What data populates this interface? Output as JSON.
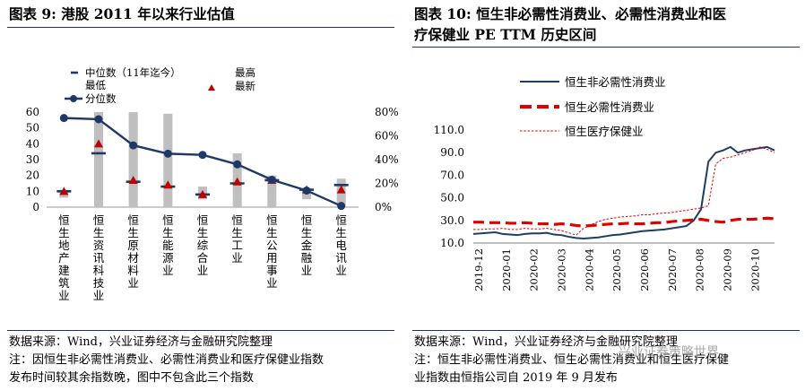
{
  "left": {
    "title": "图表 9:  港股 2011 年以来行业估值",
    "source_lines": [
      "数据来源：Wind，兴业证券经济与金融研究院整理",
      "注：因恒生非必需性消费业、必需性消费业和医疗保健业指数",
      "发布时间较其余指数晚，图中不包含此三个指数"
    ]
  },
  "right": {
    "title_lines": [
      "图表 10:  恒生非必需性消费业、必需性消费业和医",
      "疗保健业 PE TTM 历史区间"
    ],
    "source_lines": [
      "数据来源：Wind，兴业证券经济与金融研究院整理",
      "注：恒生非必需性消费业、恒生必需性消费业和恒生医疗保健",
      "业指数由恒指公司自 2019 年 9 月发布"
    ]
  },
  "watermark": "兴业证券策略世界",
  "chart_data": [
    {
      "type": "bar",
      "categories": [
        "恒生地产建筑业",
        "恒生资讯科技业",
        "恒生原材料业",
        "恒生能源业",
        "恒生综合业",
        "恒生工业",
        "恒生公用事业",
        "恒生金融业",
        "恒生电讯业"
      ],
      "legend": [
        "中位数（11年迄今）",
        "最低",
        "分位数",
        "最高",
        "最新"
      ],
      "bar_range": [
        [
          6,
          11
        ],
        [
          0,
          60
        ],
        [
          0,
          60
        ],
        [
          0,
          59
        ],
        [
          5,
          13
        ],
        [
          0,
          34
        ],
        [
          0,
          20
        ],
        [
          5,
          12
        ],
        [
          0,
          18
        ]
      ],
      "median": [
        10,
        34,
        16,
        13,
        8,
        15,
        17,
        11,
        14
      ],
      "latest": [
        10,
        40,
        17,
        14,
        8,
        16,
        17,
        11,
        11
      ],
      "percentile": [
        75,
        74,
        52,
        45,
        44,
        36,
        23,
        14,
        1
      ],
      "ylim": [
        0,
        60
      ],
      "yticks": [
        "0",
        "10",
        "20",
        "30",
        "40",
        "50",
        "60"
      ],
      "y2lim": [
        0,
        80
      ],
      "y2ticks": [
        "0%",
        "20%",
        "40%",
        "60%",
        "80%"
      ],
      "colors": {
        "bar": "#bfbfbf",
        "median": "#1f3868",
        "latest": "#c00000",
        "percentile": "#1f3868"
      }
    },
    {
      "type": "line",
      "x_ticks": [
        "2019-12",
        "2020-01",
        "2020-02",
        "2020-03",
        "2020-04",
        "2020-05",
        "2020-06",
        "2020-07",
        "2020-08",
        "2020-09",
        "2020-10"
      ],
      "ylim": [
        10,
        110
      ],
      "yticks": [
        "10.0",
        "30.0",
        "50.0",
        "70.0",
        "90.0",
        "110.0"
      ],
      "series": [
        {
          "name": "恒生非必需性消费业",
          "color": "#1f3d63",
          "style": "solid",
          "values": [
            18,
            18.5,
            19,
            19.5,
            18,
            17.5,
            17,
            18,
            18.5,
            18.5,
            19,
            17.5,
            17,
            15.5,
            14.5,
            14,
            14.5,
            15,
            16,
            17,
            17.5,
            18.5,
            19.5,
            20.5,
            21,
            21.5,
            22,
            23,
            24,
            25,
            30,
            40,
            82,
            90,
            92,
            95,
            90,
            92,
            93,
            94,
            95,
            92
          ]
        },
        {
          "name": "恒生必需性消费业",
          "color": "#e00000",
          "style": "dashed",
          "values": [
            28.5,
            28.5,
            28,
            28,
            28,
            27.5,
            27.5,
            28,
            27.5,
            27,
            27,
            26.5,
            27,
            26.5,
            25.5,
            25,
            25.5,
            26,
            26.5,
            27,
            27,
            27.5,
            27,
            27,
            27.5,
            28,
            28,
            29,
            29.5,
            30,
            30.5,
            31,
            30,
            29,
            28.5,
            30,
            31,
            31,
            31,
            31.5,
            32,
            31.5
          ]
        },
        {
          "name": "恒生医疗保健业",
          "color": "#e00000",
          "style": "dotted",
          "values": [
            22,
            22,
            22.5,
            22.5,
            23,
            22,
            22,
            23,
            22.5,
            22.5,
            23,
            22,
            21,
            19,
            17,
            23,
            26,
            29,
            31,
            32,
            33,
            33.5,
            34,
            35,
            35,
            36,
            36.5,
            37,
            38,
            39,
            40,
            41,
            43,
            80,
            85,
            86,
            88,
            90,
            92,
            95,
            93,
            90
          ]
        }
      ]
    }
  ]
}
